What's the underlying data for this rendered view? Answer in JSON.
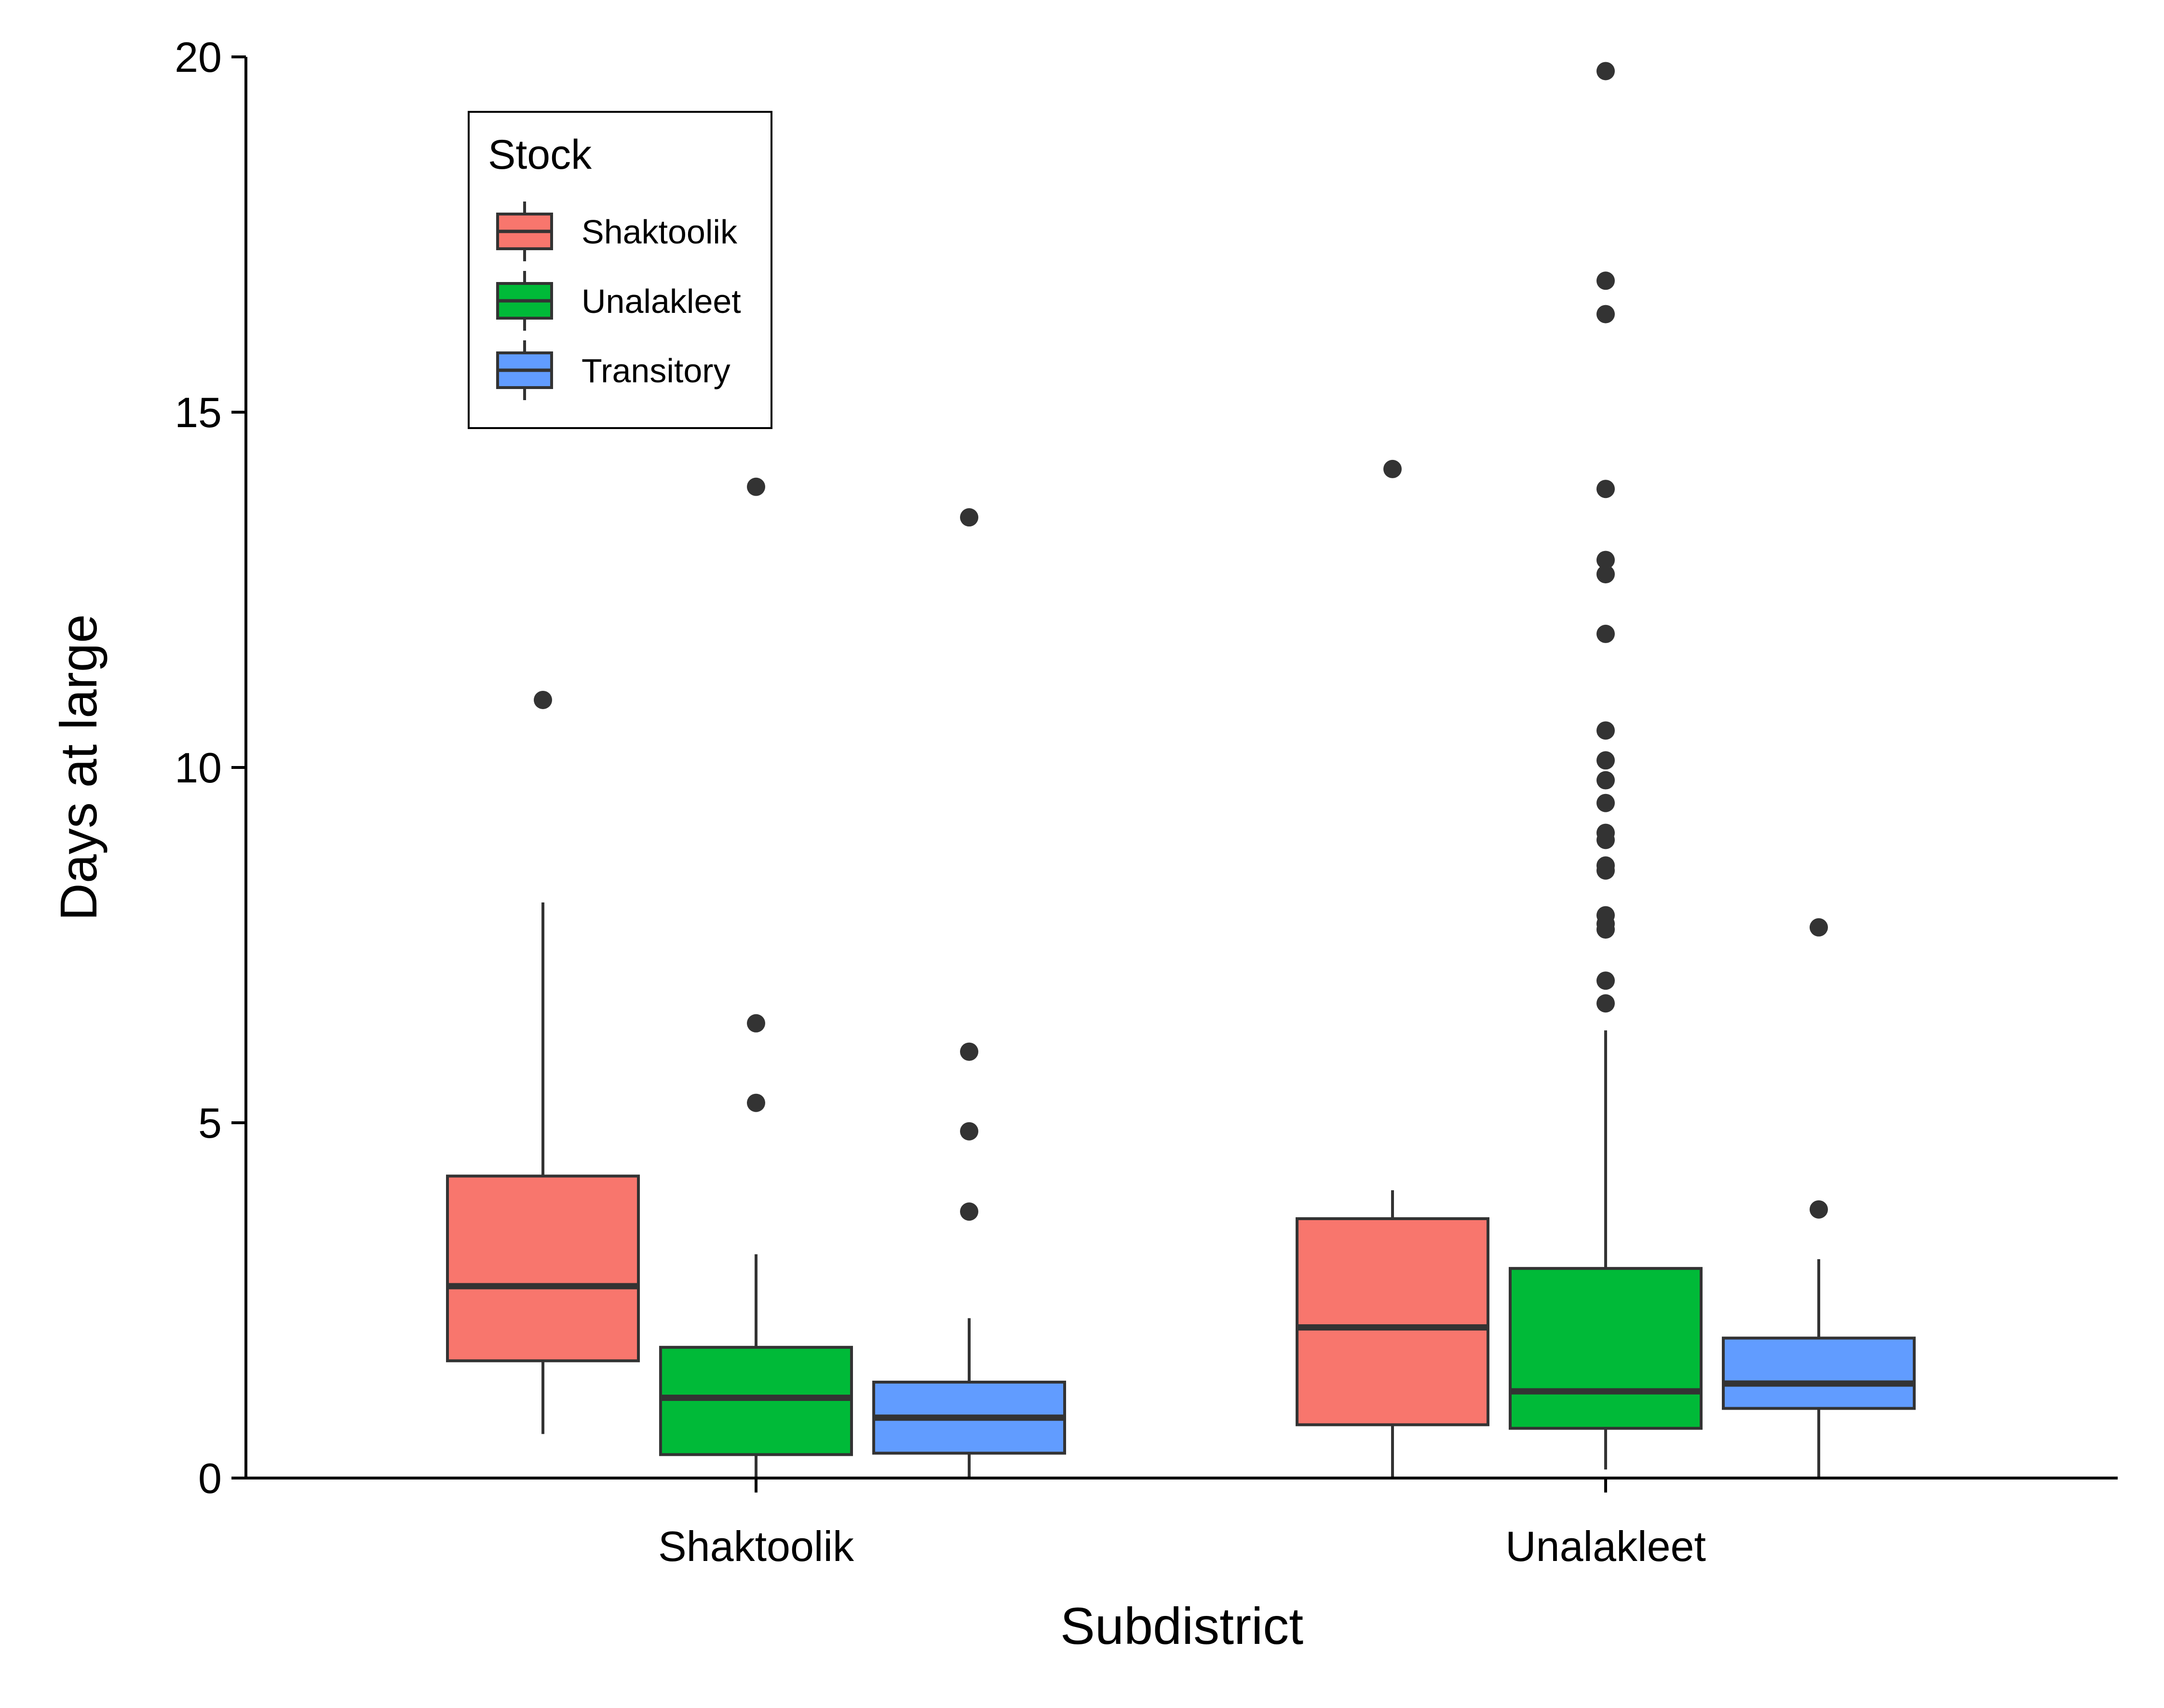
{
  "chart_data": {
    "type": "boxplot",
    "xlabel": "Subdistrict",
    "ylabel": "Days at large",
    "categories": [
      "Shaktoolik",
      "Unalakleet"
    ],
    "ylim": [
      0,
      20
    ],
    "yticks": [
      0,
      5,
      10,
      15,
      20
    ],
    "grid": false,
    "legend": {
      "title": "Stock",
      "position": "top-left",
      "entries": [
        "Shaktoolik",
        "Unalakleet",
        "Transitory"
      ]
    },
    "series": [
      {
        "name": "Shaktoolik",
        "color": "#F8766D",
        "boxes": [
          {
            "category": "Shaktoolik",
            "q1": 1.65,
            "median": 2.7,
            "q3": 4.25,
            "whisker_low": 0.62,
            "whisker_high": 8.1,
            "outliers": [
              10.95
            ]
          },
          {
            "category": "Unalakleet",
            "q1": 0.75,
            "median": 2.12,
            "q3": 3.65,
            "whisker_low": 0.0,
            "whisker_high": 4.05,
            "outliers": [
              14.2
            ]
          }
        ]
      },
      {
        "name": "Unalakleet",
        "color": "#00BA38",
        "boxes": [
          {
            "category": "Shaktoolik",
            "q1": 0.33,
            "median": 1.13,
            "q3": 1.84,
            "whisker_low": 0.0,
            "whisker_high": 3.15,
            "outliers": [
              5.28,
              6.4,
              13.95
            ]
          },
          {
            "category": "Unalakleet",
            "q1": 0.7,
            "median": 1.22,
            "q3": 2.95,
            "whisker_low": 0.12,
            "whisker_high": 6.3,
            "outliers": [
              6.68,
              7.0,
              7.72,
              7.8,
              7.92,
              8.55,
              8.62,
              8.98,
              9.08,
              9.5,
              9.82,
              10.1,
              10.52,
              11.88,
              12.72,
              12.92,
              13.92,
              16.38,
              16.85,
              19.8
            ]
          }
        ]
      },
      {
        "name": "Transitory",
        "color": "#619CFF",
        "boxes": [
          {
            "category": "Shaktoolik",
            "q1": 0.35,
            "median": 0.85,
            "q3": 1.35,
            "whisker_low": 0.0,
            "whisker_high": 2.25,
            "outliers": [
              3.75,
              4.88,
              6.0,
              13.52
            ]
          },
          {
            "category": "Unalakleet",
            "q1": 0.98,
            "median": 1.33,
            "q3": 1.97,
            "whisker_low": 0.0,
            "whisker_high": 3.08,
            "outliers": [
              3.78,
              7.75
            ]
          }
        ]
      }
    ]
  }
}
